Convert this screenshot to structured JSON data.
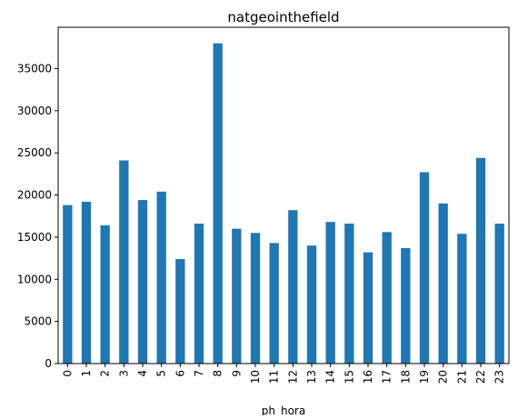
{
  "chart_data": {
    "type": "bar",
    "title": "natgeointhefield",
    "xlabel": "ph_hora",
    "ylabel": "",
    "categories": [
      "0",
      "1",
      "2",
      "3",
      "4",
      "5",
      "6",
      "7",
      "8",
      "9",
      "10",
      "11",
      "12",
      "13",
      "14",
      "15",
      "16",
      "17",
      "18",
      "19",
      "20",
      "21",
      "22",
      "23"
    ],
    "values": [
      18800,
      19200,
      16400,
      24100,
      19400,
      20400,
      12400,
      16600,
      38000,
      16000,
      15500,
      14300,
      18200,
      14000,
      16800,
      16600,
      13200,
      15600,
      13700,
      22700,
      19000,
      15400,
      24400,
      16600
    ],
    "ylim": [
      0,
      39900
    ],
    "yticks": [
      0,
      5000,
      10000,
      15000,
      20000,
      25000,
      30000,
      35000
    ],
    "grid": false,
    "legend": "none",
    "bar_color": "#1f77b4"
  }
}
